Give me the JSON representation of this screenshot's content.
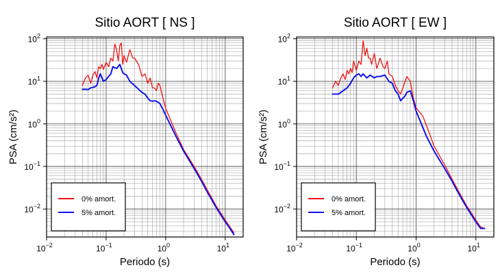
{
  "chart_data": [
    {
      "type": "line",
      "title": "Sitio AORT [ NS ]",
      "xlabel": "Periodo (s)",
      "ylabel": "PSA (cm/s²)",
      "xscale": "log",
      "yscale": "log",
      "xlim": [
        0.01,
        20
      ],
      "ylim": [
        0.0022,
        110
      ],
      "grid": true,
      "legend_position": "bottom-left",
      "x_ticks": [
        {
          "base": "10",
          "exp": "−2"
        },
        {
          "base": "10",
          "exp": "−1"
        },
        {
          "base": "10",
          "exp": "0"
        },
        {
          "base": "10",
          "exp": "1"
        }
      ],
      "y_ticks": [
        {
          "base": "10",
          "exp": "−2"
        },
        {
          "base": "10",
          "exp": "−1"
        },
        {
          "base": "10",
          "exp": "0"
        },
        {
          "base": "10",
          "exp": "1"
        },
        {
          "base": "10",
          "exp": "2"
        }
      ],
      "series": [
        {
          "name": "0% amort.",
          "color": "#ee1111",
          "x": [
            0.04,
            0.045,
            0.05,
            0.055,
            0.06,
            0.065,
            0.07,
            0.075,
            0.08,
            0.085,
            0.09,
            0.1,
            0.11,
            0.12,
            0.13,
            0.14,
            0.15,
            0.16,
            0.17,
            0.18,
            0.19,
            0.2,
            0.22,
            0.25,
            0.28,
            0.3,
            0.35,
            0.4,
            0.45,
            0.5,
            0.55,
            0.6,
            0.65,
            0.7,
            0.75,
            0.8,
            0.9,
            1.0,
            1.5,
            2,
            3,
            4,
            5,
            7,
            10,
            12,
            14
          ],
          "y": [
            8,
            12,
            14,
            9,
            14,
            17,
            12,
            22,
            20,
            25,
            19,
            28,
            22,
            35,
            30,
            75,
            55,
            30,
            70,
            80,
            25,
            40,
            28,
            55,
            35,
            35,
            25,
            13,
            15,
            9,
            12,
            7,
            7,
            6,
            9,
            8,
            4,
            2.3,
            0.6,
            0.25,
            0.1,
            0.05,
            0.028,
            0.012,
            0.0055,
            0.0038,
            0.0028
          ]
        },
        {
          "name": "5% amort.",
          "color": "#1111ee",
          "x": [
            0.04,
            0.045,
            0.05,
            0.055,
            0.06,
            0.065,
            0.07,
            0.075,
            0.08,
            0.09,
            0.1,
            0.11,
            0.12,
            0.13,
            0.15,
            0.17,
            0.19,
            0.2,
            0.22,
            0.25,
            0.3,
            0.35,
            0.4,
            0.45,
            0.5,
            0.55,
            0.6,
            0.65,
            0.7,
            0.75,
            0.8,
            0.9,
            1.0,
            1.5,
            2,
            3,
            4,
            5,
            7,
            10,
            12,
            14
          ],
          "y": [
            6.5,
            6.5,
            6.4,
            7,
            7.2,
            7.5,
            8,
            12,
            15,
            10,
            11,
            13,
            15,
            22,
            20,
            25,
            16,
            15,
            14,
            10,
            8,
            6.5,
            5.5,
            5,
            4,
            3.5,
            3.4,
            3.5,
            3.4,
            3.2,
            3,
            2.2,
            1.6,
            0.5,
            0.23,
            0.09,
            0.045,
            0.025,
            0.011,
            0.005,
            0.0035,
            0.0025
          ]
        }
      ]
    },
    {
      "type": "line",
      "title": "Sitio AORT [ EW ]",
      "xlabel": "Periodo (s)",
      "ylabel": "PSA (cm/s²)",
      "xscale": "log",
      "yscale": "log",
      "xlim": [
        0.01,
        20
      ],
      "ylim": [
        0.0022,
        110
      ],
      "grid": true,
      "legend_position": "bottom-left",
      "x_ticks": [
        {
          "base": "10",
          "exp": "−2"
        },
        {
          "base": "10",
          "exp": "−1"
        },
        {
          "base": "10",
          "exp": "0"
        },
        {
          "base": "10",
          "exp": "1"
        }
      ],
      "y_ticks": [
        {
          "base": "10",
          "exp": "−2"
        },
        {
          "base": "10",
          "exp": "−1"
        },
        {
          "base": "10",
          "exp": "0"
        },
        {
          "base": "10",
          "exp": "1"
        },
        {
          "base": "10",
          "exp": "2"
        }
      ],
      "series": [
        {
          "name": "0% amort.",
          "color": "#ee1111",
          "x": [
            0.04,
            0.045,
            0.05,
            0.055,
            0.06,
            0.065,
            0.07,
            0.075,
            0.08,
            0.085,
            0.09,
            0.1,
            0.11,
            0.12,
            0.13,
            0.14,
            0.15,
            0.16,
            0.17,
            0.18,
            0.2,
            0.22,
            0.25,
            0.28,
            0.3,
            0.33,
            0.35,
            0.4,
            0.45,
            0.5,
            0.55,
            0.6,
            0.7,
            0.8,
            0.9,
            1.0,
            1.3,
            1.5,
            2,
            3,
            4,
            5,
            7,
            10,
            12,
            14
          ],
          "y": [
            7,
            10,
            8,
            12,
            15,
            11,
            18,
            15,
            20,
            16,
            30,
            18,
            30,
            25,
            90,
            40,
            60,
            35,
            35,
            25,
            45,
            20,
            35,
            22,
            20,
            30,
            15,
            13,
            8,
            6,
            5,
            7,
            13,
            10,
            4,
            2.4,
            1.5,
            0.9,
            0.3,
            0.11,
            0.05,
            0.028,
            0.012,
            0.0055,
            0.0038,
            0.0035
          ]
        },
        {
          "name": "5% amort.",
          "color": "#1111ee",
          "x": [
            0.04,
            0.05,
            0.06,
            0.07,
            0.08,
            0.09,
            0.1,
            0.11,
            0.12,
            0.13,
            0.15,
            0.17,
            0.2,
            0.22,
            0.25,
            0.3,
            0.35,
            0.4,
            0.45,
            0.5,
            0.55,
            0.6,
            0.65,
            0.7,
            0.8,
            0.9,
            1.0,
            1.5,
            2,
            3,
            4,
            5,
            7,
            10,
            12,
            14
          ],
          "y": [
            5,
            5,
            6,
            7,
            9,
            12,
            14,
            15,
            13,
            15,
            12,
            14,
            12,
            13,
            13,
            14,
            10,
            9,
            6,
            5,
            3.5,
            4,
            4.5,
            5.5,
            6,
            3.5,
            2,
            0.5,
            0.23,
            0.09,
            0.045,
            0.025,
            0.011,
            0.005,
            0.0035,
            0.0035
          ]
        }
      ]
    }
  ]
}
